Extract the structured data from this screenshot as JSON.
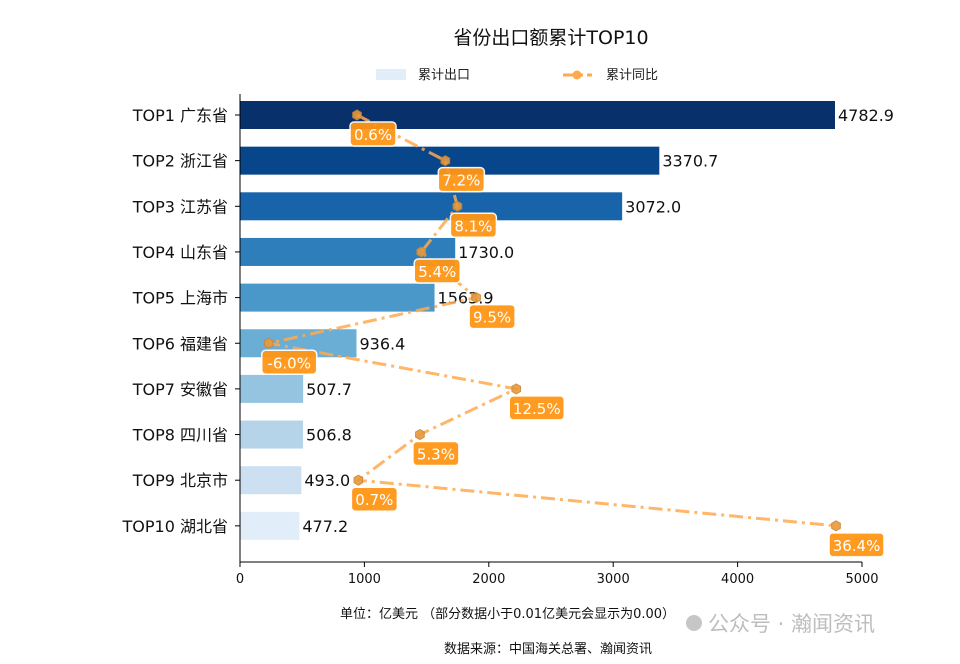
{
  "chart_data": {
    "type": "bar",
    "orientation": "horizontal",
    "title": "省份出口额累计TOP10",
    "categories": [
      "TOP1 广东省",
      "TOP2 浙江省",
      "TOP3 江苏省",
      "TOP4 山东省",
      "TOP5 上海市",
      "TOP6 福建省",
      "TOP7 安徽省",
      "TOP8 四川省",
      "TOP9 北京市",
      "TOP10 湖北省"
    ],
    "series": [
      {
        "name": "累计出口",
        "type": "bar",
        "values": [
          4782.9,
          3370.7,
          3072.0,
          1730.0,
          1563.9,
          936.4,
          507.7,
          506.8,
          493.0,
          477.2
        ],
        "labels": [
          "4782.9",
          "3370.7",
          "3072.0",
          "1730.0",
          "1563.9",
          "936.4",
          "507.7",
          "506.8",
          "493.0",
          "477.2"
        ]
      },
      {
        "name": "累计同比",
        "type": "line",
        "unit": "%",
        "values": [
          0.6,
          7.2,
          8.1,
          5.4,
          9.5,
          -6.0,
          12.5,
          5.3,
          0.7,
          36.4
        ],
        "labels": [
          "0.6%",
          "7.2%",
          "8.1%",
          "5.4%",
          "9.5%",
          "-6.0%",
          "12.5%",
          "5.3%",
          "0.7%",
          "36.4%"
        ]
      }
    ],
    "xlim": [
      0,
      5000
    ],
    "xticks": [
      "0",
      "1000",
      "2000",
      "3000",
      "4000",
      "5000"
    ],
    "xlabel": "单位：亿美元  （部分数据小于0.01亿美元会显示为0.00）",
    "legend_position": "top-center",
    "grid": false,
    "source": "数据来源：中国海关总署、瀚闻资讯",
    "bar_colors": [
      "#08306b",
      "#08468c",
      "#1764ab",
      "#2e7ebc",
      "#4a98c9",
      "#6aaed6",
      "#94c4df",
      "#b5d3e9",
      "#cde0f1",
      "#e1edf8"
    ],
    "line_color": "#ffa94d",
    "label_box_color": "#ff9616"
  },
  "watermark": "公众号 · 瀚闻资讯"
}
